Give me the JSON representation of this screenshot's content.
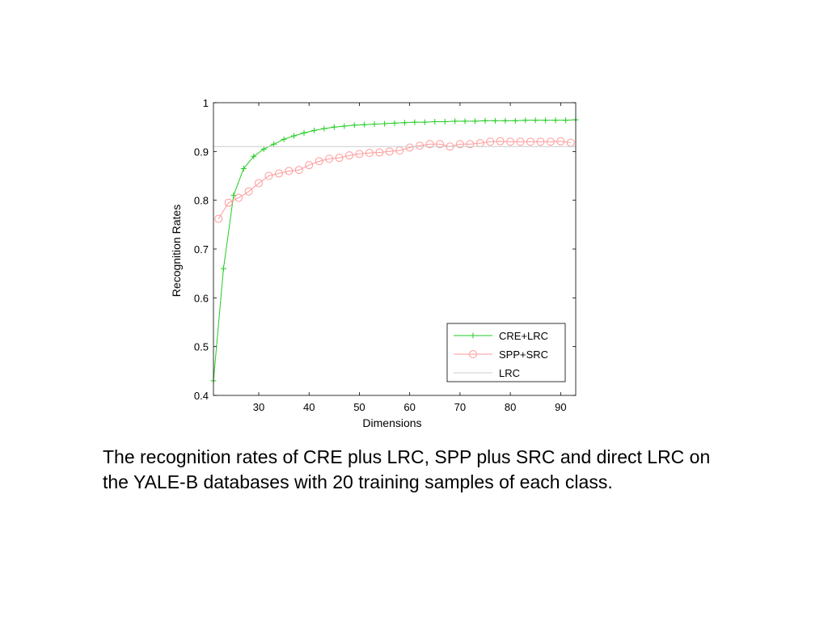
{
  "caption": "The recognition rates of CRE plus LRC, SPP plus SRC and direct LRC on the YALE-B databases with 20 training samples of each class.",
  "chart_data": {
    "type": "line",
    "title": "",
    "xlabel": "Dimensions",
    "ylabel": "Recognition Rates",
    "xlim": [
      21,
      93
    ],
    "ylim": [
      0.4,
      1.0
    ],
    "xticks": [
      30,
      40,
      50,
      60,
      70,
      80,
      90
    ],
    "yticks": [
      0.4,
      0.5,
      0.6,
      0.7,
      0.8,
      0.9,
      1.0
    ],
    "xtick_labels": [
      "30",
      "40",
      "50",
      "60",
      "70",
      "80",
      "90"
    ],
    "ytick_labels": [
      "0.4",
      "0.5",
      "0.6",
      "0.7",
      "0.8",
      "0.9",
      "1"
    ],
    "grid": false,
    "legend_position": "bottom-right",
    "series": [
      {
        "name": "CRE+LRC",
        "color": "#22cc22",
        "marker": "plus",
        "x": [
          21,
          23,
          25,
          27,
          29,
          31,
          33,
          35,
          37,
          39,
          41,
          43,
          45,
          47,
          49,
          51,
          53,
          55,
          57,
          59,
          61,
          63,
          65,
          67,
          69,
          71,
          73,
          75,
          77,
          79,
          81,
          83,
          85,
          87,
          89,
          91,
          93
        ],
        "y": [
          0.43,
          0.66,
          0.81,
          0.865,
          0.89,
          0.905,
          0.915,
          0.925,
          0.932,
          0.938,
          0.943,
          0.947,
          0.95,
          0.952,
          0.954,
          0.955,
          0.956,
          0.957,
          0.958,
          0.959,
          0.96,
          0.96,
          0.961,
          0.961,
          0.962,
          0.962,
          0.962,
          0.963,
          0.963,
          0.963,
          0.963,
          0.964,
          0.964,
          0.964,
          0.964,
          0.964,
          0.965
        ]
      },
      {
        "name": "SPP+SRC",
        "color": "#ff9999",
        "marker": "circle",
        "x": [
          22,
          24,
          26,
          28,
          30,
          32,
          34,
          36,
          38,
          40,
          42,
          44,
          46,
          48,
          50,
          52,
          54,
          56,
          58,
          60,
          62,
          64,
          66,
          68,
          70,
          72,
          74,
          76,
          78,
          80,
          82,
          84,
          86,
          88,
          90,
          92
        ],
        "y": [
          0.762,
          0.795,
          0.805,
          0.818,
          0.835,
          0.85,
          0.855,
          0.86,
          0.862,
          0.872,
          0.88,
          0.885,
          0.887,
          0.892,
          0.895,
          0.897,
          0.898,
          0.9,
          0.902,
          0.908,
          0.912,
          0.915,
          0.915,
          0.91,
          0.915,
          0.915,
          0.917,
          0.92,
          0.921,
          0.92,
          0.92,
          0.92,
          0.92,
          0.92,
          0.921,
          0.918
        ]
      },
      {
        "name": "LRC",
        "color": "#cccccc",
        "marker": "none",
        "x": [
          21,
          93
        ],
        "y": [
          0.91,
          0.91
        ]
      }
    ]
  }
}
